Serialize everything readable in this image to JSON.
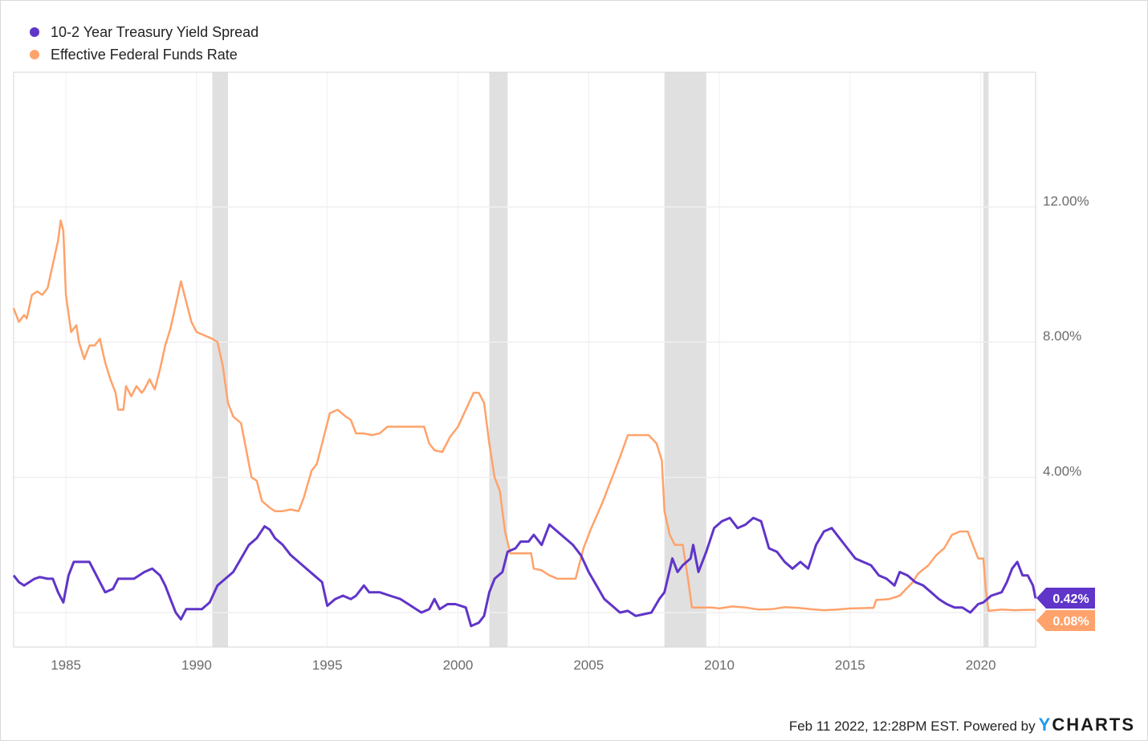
{
  "chart_data": {
    "type": "line",
    "title": "",
    "xlabel": "",
    "ylabel": "",
    "xlim": [
      1983.0,
      2022.1
    ],
    "ylim": [
      -1.0,
      16.0
    ],
    "x_ticks": [
      1985,
      1990,
      1995,
      2000,
      2005,
      2010,
      2015,
      2020
    ],
    "y_ticks": [
      {
        "value": 0,
        "label": ""
      },
      {
        "value": 4,
        "label": "4.00%"
      },
      {
        "value": 8,
        "label": "8.00%"
      },
      {
        "value": 12,
        "label": "12.00%"
      }
    ],
    "y_axis_side": "right",
    "grid": true,
    "legend_position": "top-left",
    "recession_bands": [
      [
        1990.6,
        1991.2
      ],
      [
        2001.2,
        2001.9
      ],
      [
        2007.9,
        2009.5
      ],
      [
        2020.1,
        2020.3
      ]
    ],
    "series": [
      {
        "name": "10-2 Year Treasury Yield Spread",
        "color": "#6035c9",
        "last_value_label": "0.42%",
        "points": [
          [
            1983.0,
            1.1
          ],
          [
            1983.2,
            0.9
          ],
          [
            1983.4,
            0.8
          ],
          [
            1983.6,
            0.9
          ],
          [
            1983.8,
            1.0
          ],
          [
            1984.0,
            1.05
          ],
          [
            1984.3,
            1.0
          ],
          [
            1984.5,
            1.0
          ],
          [
            1984.7,
            0.6
          ],
          [
            1984.9,
            0.3
          ],
          [
            1985.1,
            1.1
          ],
          [
            1985.3,
            1.5
          ],
          [
            1985.6,
            1.5
          ],
          [
            1985.9,
            1.5
          ],
          [
            1986.1,
            1.2
          ],
          [
            1986.3,
            0.9
          ],
          [
            1986.5,
            0.6
          ],
          [
            1986.8,
            0.7
          ],
          [
            1987.0,
            1.0
          ],
          [
            1987.3,
            1.0
          ],
          [
            1987.6,
            1.0
          ],
          [
            1987.8,
            1.1
          ],
          [
            1988.0,
            1.2
          ],
          [
            1988.3,
            1.3
          ],
          [
            1988.6,
            1.1
          ],
          [
            1988.8,
            0.8
          ],
          [
            1989.0,
            0.4
          ],
          [
            1989.2,
            0.0
          ],
          [
            1989.4,
            -0.2
          ],
          [
            1989.6,
            0.1
          ],
          [
            1989.9,
            0.1
          ],
          [
            1990.2,
            0.1
          ],
          [
            1990.5,
            0.3
          ],
          [
            1990.8,
            0.8
          ],
          [
            1991.1,
            1.0
          ],
          [
            1991.4,
            1.2
          ],
          [
            1991.7,
            1.6
          ],
          [
            1992.0,
            2.0
          ],
          [
            1992.3,
            2.2
          ],
          [
            1992.6,
            2.55
          ],
          [
            1992.8,
            2.45
          ],
          [
            1993.0,
            2.2
          ],
          [
            1993.3,
            2.0
          ],
          [
            1993.6,
            1.7
          ],
          [
            1993.9,
            1.5
          ],
          [
            1994.2,
            1.3
          ],
          [
            1994.5,
            1.1
          ],
          [
            1994.8,
            0.9
          ],
          [
            1995.0,
            0.2
          ],
          [
            1995.3,
            0.4
          ],
          [
            1995.6,
            0.5
          ],
          [
            1995.9,
            0.4
          ],
          [
            1996.1,
            0.5
          ],
          [
            1996.4,
            0.8
          ],
          [
            1996.6,
            0.6
          ],
          [
            1997.0,
            0.6
          ],
          [
            1997.4,
            0.5
          ],
          [
            1997.8,
            0.4
          ],
          [
            1998.2,
            0.2
          ],
          [
            1998.6,
            0.0
          ],
          [
            1998.9,
            0.1
          ],
          [
            1999.1,
            0.4
          ],
          [
            1999.3,
            0.1
          ],
          [
            1999.6,
            0.25
          ],
          [
            1999.9,
            0.25
          ],
          [
            2000.1,
            0.2
          ],
          [
            2000.3,
            0.15
          ],
          [
            2000.5,
            -0.4
          ],
          [
            2000.8,
            -0.3
          ],
          [
            2001.0,
            -0.1
          ],
          [
            2001.2,
            0.6
          ],
          [
            2001.4,
            1.0
          ],
          [
            2001.7,
            1.2
          ],
          [
            2001.9,
            1.8
          ],
          [
            2002.2,
            1.9
          ],
          [
            2002.4,
            2.1
          ],
          [
            2002.7,
            2.1
          ],
          [
            2002.9,
            2.3
          ],
          [
            2003.2,
            2.0
          ],
          [
            2003.5,
            2.6
          ],
          [
            2003.8,
            2.4
          ],
          [
            2004.1,
            2.2
          ],
          [
            2004.4,
            2.0
          ],
          [
            2004.7,
            1.7
          ],
          [
            2005.0,
            1.2
          ],
          [
            2005.3,
            0.8
          ],
          [
            2005.6,
            0.4
          ],
          [
            2005.9,
            0.2
          ],
          [
            2006.2,
            0.0
          ],
          [
            2006.5,
            0.05
          ],
          [
            2006.8,
            -0.1
          ],
          [
            2007.1,
            -0.05
          ],
          [
            2007.4,
            0.0
          ],
          [
            2007.7,
            0.4
          ],
          [
            2007.9,
            0.6
          ],
          [
            2008.2,
            1.6
          ],
          [
            2008.4,
            1.2
          ],
          [
            2008.6,
            1.4
          ],
          [
            2008.9,
            1.6
          ],
          [
            2009.0,
            2.0
          ],
          [
            2009.2,
            1.2
          ],
          [
            2009.5,
            1.8
          ],
          [
            2009.8,
            2.5
          ],
          [
            2010.1,
            2.7
          ],
          [
            2010.4,
            2.8
          ],
          [
            2010.7,
            2.5
          ],
          [
            2011.0,
            2.6
          ],
          [
            2011.3,
            2.8
          ],
          [
            2011.6,
            2.7
          ],
          [
            2011.9,
            1.9
          ],
          [
            2012.2,
            1.8
          ],
          [
            2012.5,
            1.5
          ],
          [
            2012.8,
            1.3
          ],
          [
            2013.1,
            1.5
          ],
          [
            2013.4,
            1.3
          ],
          [
            2013.7,
            2.0
          ],
          [
            2014.0,
            2.4
          ],
          [
            2014.3,
            2.5
          ],
          [
            2014.6,
            2.2
          ],
          [
            2014.9,
            1.9
          ],
          [
            2015.2,
            1.6
          ],
          [
            2015.5,
            1.5
          ],
          [
            2015.8,
            1.4
          ],
          [
            2016.1,
            1.1
          ],
          [
            2016.4,
            1.0
          ],
          [
            2016.7,
            0.8
          ],
          [
            2016.9,
            1.2
          ],
          [
            2017.2,
            1.1
          ],
          [
            2017.5,
            0.9
          ],
          [
            2017.8,
            0.8
          ],
          [
            2018.1,
            0.6
          ],
          [
            2018.4,
            0.4
          ],
          [
            2018.7,
            0.25
          ],
          [
            2019.0,
            0.15
          ],
          [
            2019.3,
            0.15
          ],
          [
            2019.6,
            0.0
          ],
          [
            2019.9,
            0.25
          ],
          [
            2020.1,
            0.3
          ],
          [
            2020.4,
            0.5
          ],
          [
            2020.8,
            0.6
          ],
          [
            2021.0,
            0.9
          ],
          [
            2021.2,
            1.3
          ],
          [
            2021.4,
            1.5
          ],
          [
            2021.6,
            1.1
          ],
          [
            2021.8,
            1.1
          ],
          [
            2022.0,
            0.8
          ],
          [
            2022.1,
            0.42
          ]
        ]
      },
      {
        "name": "Effective Federal Funds Rate",
        "color": "#ffa26b",
        "last_value_label": "0.08%",
        "points": [
          [
            1983.0,
            9.0
          ],
          [
            1983.2,
            8.6
          ],
          [
            1983.4,
            8.8
          ],
          [
            1983.5,
            8.7
          ],
          [
            1983.7,
            9.4
          ],
          [
            1983.9,
            9.5
          ],
          [
            1984.1,
            9.4
          ],
          [
            1984.3,
            9.6
          ],
          [
            1984.5,
            10.3
          ],
          [
            1984.7,
            11.0
          ],
          [
            1984.8,
            11.6
          ],
          [
            1984.9,
            11.3
          ],
          [
            1985.0,
            9.4
          ],
          [
            1985.2,
            8.3
          ],
          [
            1985.4,
            8.5
          ],
          [
            1985.5,
            8.0
          ],
          [
            1985.7,
            7.5
          ],
          [
            1985.9,
            7.9
          ],
          [
            1986.1,
            7.9
          ],
          [
            1986.3,
            8.1
          ],
          [
            1986.5,
            7.4
          ],
          [
            1986.7,
            6.9
          ],
          [
            1986.9,
            6.5
          ],
          [
            1987.0,
            6.0
          ],
          [
            1987.2,
            6.0
          ],
          [
            1987.3,
            6.7
          ],
          [
            1987.5,
            6.4
          ],
          [
            1987.7,
            6.7
          ],
          [
            1987.9,
            6.5
          ],
          [
            1988.0,
            6.6
          ],
          [
            1988.2,
            6.9
          ],
          [
            1988.4,
            6.6
          ],
          [
            1988.6,
            7.2
          ],
          [
            1988.8,
            7.9
          ],
          [
            1989.0,
            8.4
          ],
          [
            1989.2,
            9.1
          ],
          [
            1989.4,
            9.8
          ],
          [
            1989.6,
            9.2
          ],
          [
            1989.8,
            8.6
          ],
          [
            1990.0,
            8.3
          ],
          [
            1990.3,
            8.2
          ],
          [
            1990.6,
            8.1
          ],
          [
            1990.8,
            8.0
          ],
          [
            1991.0,
            7.3
          ],
          [
            1991.2,
            6.2
          ],
          [
            1991.4,
            5.8
          ],
          [
            1991.7,
            5.6
          ],
          [
            1991.9,
            4.8
          ],
          [
            1992.1,
            4.0
          ],
          [
            1992.3,
            3.9
          ],
          [
            1992.5,
            3.3
          ],
          [
            1992.8,
            3.1
          ],
          [
            1993.0,
            3.0
          ],
          [
            1993.3,
            3.0
          ],
          [
            1993.6,
            3.05
          ],
          [
            1993.9,
            3.0
          ],
          [
            1994.1,
            3.4
          ],
          [
            1994.4,
            4.2
          ],
          [
            1994.6,
            4.4
          ],
          [
            1994.8,
            5.0
          ],
          [
            1995.1,
            5.9
          ],
          [
            1995.4,
            6.0
          ],
          [
            1995.7,
            5.8
          ],
          [
            1995.9,
            5.7
          ],
          [
            1996.1,
            5.3
          ],
          [
            1996.4,
            5.3
          ],
          [
            1996.7,
            5.25
          ],
          [
            1997.0,
            5.3
          ],
          [
            1997.3,
            5.5
          ],
          [
            1997.7,
            5.5
          ],
          [
            1998.0,
            5.5
          ],
          [
            1998.4,
            5.5
          ],
          [
            1998.7,
            5.5
          ],
          [
            1998.9,
            5.0
          ],
          [
            1999.1,
            4.8
          ],
          [
            1999.4,
            4.75
          ],
          [
            1999.7,
            5.2
          ],
          [
            2000.0,
            5.5
          ],
          [
            2000.3,
            6.0
          ],
          [
            2000.6,
            6.5
          ],
          [
            2000.8,
            6.5
          ],
          [
            2001.0,
            6.2
          ],
          [
            2001.2,
            5.0
          ],
          [
            2001.4,
            4.0
          ],
          [
            2001.6,
            3.6
          ],
          [
            2001.8,
            2.4
          ],
          [
            2002.0,
            1.75
          ],
          [
            2002.4,
            1.75
          ],
          [
            2002.8,
            1.75
          ],
          [
            2002.9,
            1.3
          ],
          [
            2003.2,
            1.25
          ],
          [
            2003.5,
            1.1
          ],
          [
            2003.8,
            1.0
          ],
          [
            2004.2,
            1.0
          ],
          [
            2004.5,
            1.0
          ],
          [
            2004.8,
            1.9
          ],
          [
            2005.1,
            2.5
          ],
          [
            2005.5,
            3.2
          ],
          [
            2005.9,
            4.0
          ],
          [
            2006.2,
            4.6
          ],
          [
            2006.5,
            5.25
          ],
          [
            2006.9,
            5.25
          ],
          [
            2007.3,
            5.25
          ],
          [
            2007.6,
            5.0
          ],
          [
            2007.8,
            4.5
          ],
          [
            2007.9,
            3.0
          ],
          [
            2008.1,
            2.3
          ],
          [
            2008.3,
            2.0
          ],
          [
            2008.6,
            2.0
          ],
          [
            2008.8,
            1.0
          ],
          [
            2008.95,
            0.15
          ],
          [
            2009.3,
            0.15
          ],
          [
            2009.7,
            0.15
          ],
          [
            2010.0,
            0.12
          ],
          [
            2010.5,
            0.18
          ],
          [
            2011.0,
            0.15
          ],
          [
            2011.5,
            0.09
          ],
          [
            2012.0,
            0.1
          ],
          [
            2012.5,
            0.16
          ],
          [
            2013.0,
            0.14
          ],
          [
            2013.5,
            0.1
          ],
          [
            2014.0,
            0.07
          ],
          [
            2014.5,
            0.09
          ],
          [
            2015.0,
            0.12
          ],
          [
            2015.5,
            0.13
          ],
          [
            2015.9,
            0.14
          ],
          [
            2016.0,
            0.37
          ],
          [
            2016.5,
            0.4
          ],
          [
            2016.9,
            0.5
          ],
          [
            2017.1,
            0.66
          ],
          [
            2017.4,
            0.9
          ],
          [
            2017.6,
            1.15
          ],
          [
            2018.0,
            1.4
          ],
          [
            2018.3,
            1.7
          ],
          [
            2018.6,
            1.9
          ],
          [
            2018.9,
            2.3
          ],
          [
            2019.2,
            2.4
          ],
          [
            2019.5,
            2.4
          ],
          [
            2019.7,
            2.0
          ],
          [
            2019.9,
            1.6
          ],
          [
            2020.1,
            1.6
          ],
          [
            2020.2,
            0.65
          ],
          [
            2020.3,
            0.05
          ],
          [
            2020.8,
            0.09
          ],
          [
            2021.3,
            0.07
          ],
          [
            2021.8,
            0.08
          ],
          [
            2022.1,
            0.08
          ]
        ]
      }
    ]
  },
  "legend": {
    "items": [
      {
        "label": "10-2 Year Treasury Yield Spread",
        "color": "#6035c9"
      },
      {
        "label": "Effective Federal Funds Rate",
        "color": "#ffa26b"
      }
    ]
  },
  "footer": {
    "timestamp": "Feb 11 2022, 12:28PM EST. Powered by",
    "brand_y": "Y",
    "brand_rest": "CHARTS"
  },
  "colors": {
    "recession_band": "#e0e0e0",
    "grid": "#efefef",
    "axis": "#d6d6d6"
  }
}
